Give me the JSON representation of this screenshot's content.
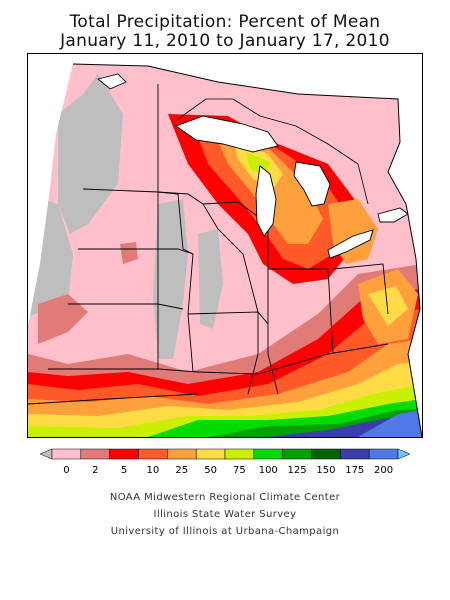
{
  "title_line1": "Total Precipitation: Percent of Mean",
  "title_line2": "January 11, 2010 to January 17, 2010",
  "legend": {
    "colors": [
      "#bebebe",
      "#ffc0cb",
      "#e07b78",
      "#ff0000",
      "#ff5a28",
      "#ffa03c",
      "#ffdc46",
      "#c8f000",
      "#00dc00",
      "#00a000",
      "#006400",
      "#3c3caa",
      "#5078e6",
      "#6ec8ff"
    ],
    "labels": [
      "0",
      "2",
      "5",
      "10",
      "25",
      "50",
      "75",
      "100",
      "125",
      "150",
      "175",
      "200"
    ]
  },
  "credits": [
    "NOAA Midwestern Regional Climate Center",
    "Illinois State Water Survey",
    "University of Illinois at Urbana-Champaign"
  ]
}
